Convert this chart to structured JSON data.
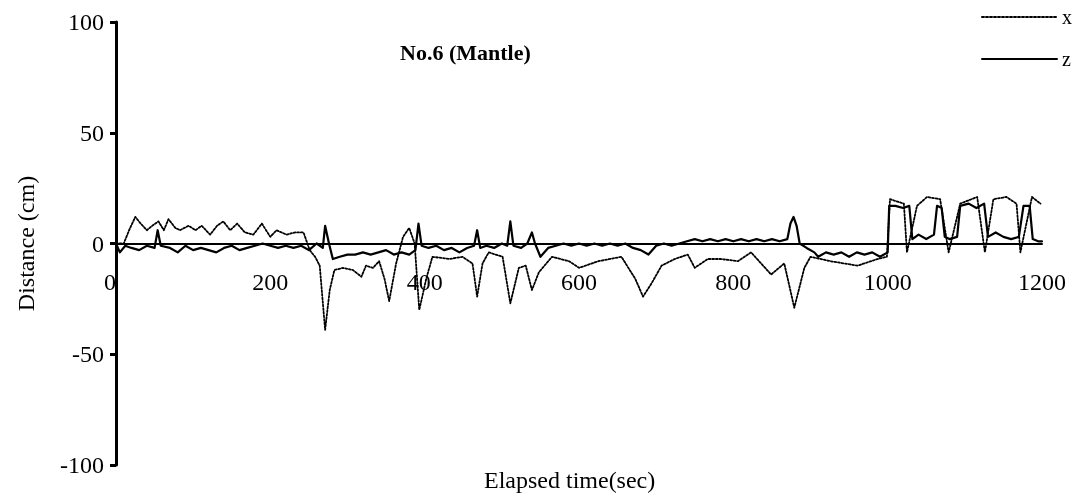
{
  "chart_data": {
    "type": "line",
    "title": "No.6 (Mantle)",
    "xlabel": "Elapsed time(sec)",
    "ylabel": "Distance (cm)",
    "xlim": [
      0,
      1200
    ],
    "xticks": [
      0,
      200,
      400,
      600,
      800,
      1000,
      1200
    ],
    "ylim": [
      -100,
      100
    ],
    "yticks": [
      -100,
      -50,
      0,
      50,
      100
    ],
    "grid": false,
    "legend": "top right",
    "marker": "none",
    "series": [
      {
        "name": "x",
        "color": "#000000",
        "line_style": "dotted",
        "x": [
          0,
          10,
          17,
          25,
          32,
          40,
          47,
          55,
          62,
          68,
          77,
          83,
          94,
          103,
          111,
          122,
          131,
          139,
          148,
          157,
          167,
          178,
          189,
          200,
          208,
          221,
          232,
          243,
          251,
          258,
          264,
          271,
          277,
          283,
          294,
          307,
          318,
          324,
          333,
          341,
          348,
          354,
          363,
          372,
          380,
          387,
          393,
          402,
          410,
          432,
          449,
          462,
          468,
          475,
          483,
          501,
          511,
          522,
          531,
          539,
          548,
          565,
          587,
          600,
          625,
          655,
          673,
          683,
          694,
          707,
          724,
          741,
          750,
          767,
          784,
          806,
          823,
          849,
          866,
          879,
          892,
          900,
          926,
          961,
          987,
          999,
          1003,
          1021,
          1025,
          1038,
          1051,
          1068,
          1079,
          1094,
          1116,
          1126,
          1137,
          1154,
          1167,
          1172,
          1187,
          1198
        ],
        "values": [
          0,
          0,
          6,
          12,
          9,
          6,
          8,
          10,
          6,
          11,
          7,
          6,
          8,
          6,
          8,
          4,
          8,
          10,
          6,
          9,
          5,
          4,
          9,
          3,
          6,
          4,
          5,
          5,
          -3,
          -6,
          -10,
          -39,
          -21,
          -12,
          -11,
          -12,
          -15,
          -10,
          -11,
          -8,
          -16,
          -26,
          -9,
          3,
          7,
          0,
          -30,
          -16,
          -6,
          -7,
          -6,
          -9,
          -24,
          -9,
          -4,
          -6,
          -27,
          -11,
          -10,
          -21,
          -13,
          -6,
          -8,
          -11,
          -8,
          -6,
          -16,
          -24,
          -18,
          -10,
          -7,
          -5,
          -11,
          -7,
          -7,
          -8,
          -4,
          -14,
          -9,
          -29,
          -11,
          -6,
          -8,
          -10,
          -7,
          -6,
          20,
          18,
          -4,
          17,
          21,
          20,
          -4,
          18,
          21,
          -4,
          20,
          21,
          18,
          -4,
          21,
          18
        ]
      },
      {
        "name": "z",
        "color": "#000000",
        "line_style": "solid",
        "x": [
          0,
          5,
          12,
          20,
          30,
          40,
          50,
          54,
          58,
          70,
          80,
          90,
          100,
          110,
          120,
          130,
          140,
          150,
          160,
          170,
          180,
          190,
          200,
          210,
          220,
          230,
          240,
          250,
          260,
          268,
          271,
          276,
          281,
          290,
          300,
          310,
          320,
          330,
          340,
          350,
          360,
          370,
          380,
          388,
          392,
          396,
          405,
          415,
          425,
          435,
          445,
          455,
          464,
          468,
          472,
          480,
          490,
          500,
          507,
          511,
          515,
          525,
          533,
          539,
          543,
          550,
          560,
          570,
          580,
          590,
          600,
          610,
          620,
          630,
          640,
          650,
          660,
          670,
          680,
          690,
          700,
          710,
          720,
          730,
          740,
          750,
          760,
          770,
          780,
          790,
          800,
          810,
          820,
          830,
          840,
          850,
          860,
          870,
          874,
          878,
          882,
          886,
          895,
          905,
          910,
          920,
          930,
          940,
          950,
          960,
          970,
          980,
          990,
          1000,
          1002,
          1010,
          1020,
          1028,
          1032,
          1040,
          1050,
          1060,
          1064,
          1070,
          1074,
          1080,
          1090,
          1094,
          1105,
          1115,
          1125,
          1130,
          1140,
          1150,
          1160,
          1170,
          1176,
          1184,
          1188,
          1195,
          1200
        ],
        "values": [
          0,
          -4,
          -1,
          -2,
          -3,
          -1,
          -2,
          6,
          -1,
          -2,
          -4,
          -1,
          -3,
          -2,
          -3,
          -4,
          -2,
          -1,
          -3,
          -2,
          -1,
          0,
          -1,
          -2,
          -1,
          -2,
          -1,
          -3,
          0,
          -2,
          8,
          0,
          -7,
          -6,
          -5,
          -5,
          -4,
          -5,
          -4,
          -3,
          -5,
          -4,
          -5,
          -3,
          9,
          -1,
          -2,
          -1,
          -3,
          -2,
          -4,
          -2,
          -1,
          6,
          -2,
          -1,
          -2,
          0,
          -1,
          10,
          -1,
          -2,
          0,
          5,
          0,
          -6,
          -2,
          -1,
          0,
          -1,
          0,
          -1,
          0,
          -1,
          0,
          -1,
          0,
          -2,
          -3,
          -5,
          -1,
          0,
          -1,
          0,
          1,
          2,
          1,
          2,
          1,
          2,
          1,
          2,
          1,
          2,
          1,
          2,
          1,
          2,
          9,
          12,
          8,
          0,
          -2,
          -4,
          -6,
          -4,
          -5,
          -4,
          -6,
          -4,
          -5,
          -4,
          -6,
          -4,
          17,
          17,
          16,
          17,
          2,
          4,
          2,
          4,
          17,
          16,
          3,
          2,
          3,
          17,
          18,
          16,
          18,
          3,
          5,
          3,
          2,
          3,
          17,
          17,
          2,
          1,
          1
        ]
      }
    ]
  }
}
